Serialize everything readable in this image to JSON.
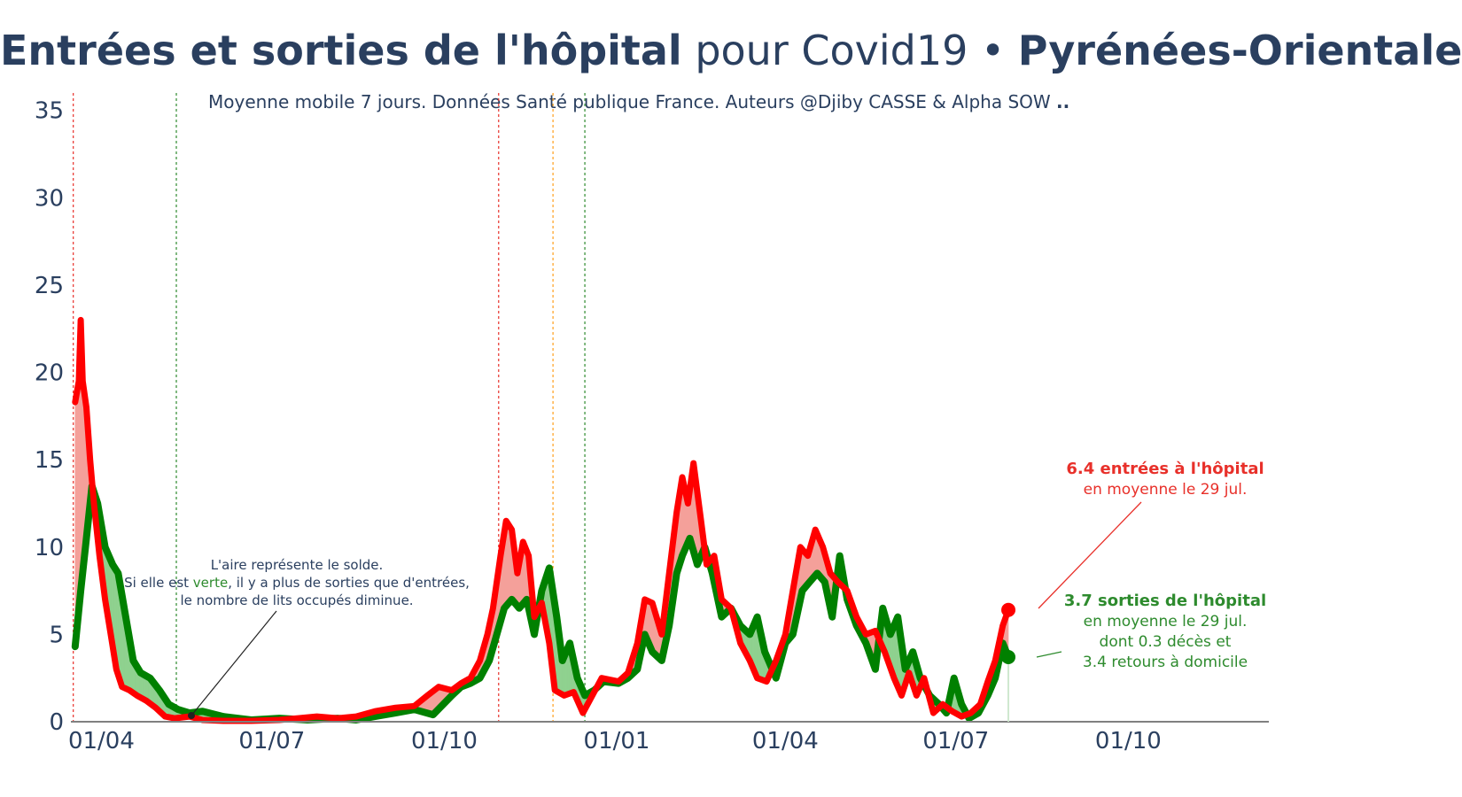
{
  "title": {
    "part1": "Entrées et sorties de l'hôpital",
    "part2": "pour Covid19 •",
    "part3": "Pyrénées-Orientales"
  },
  "subtitle": {
    "text": "Moyenne mobile 7 jours. Données Santé publique France. Auteurs @Djiby CASSE & Alpha SOW",
    "suffix": ".."
  },
  "colors": {
    "entries": "#ff0000",
    "exits": "#008000",
    "area_pos": "#f4a09a",
    "area_neg": "#8fd18f",
    "axis": "#808080",
    "text": "#2a3f5f",
    "entries_label": "#e8302a",
    "exits_label": "#2e8b2e"
  },
  "annotations": {
    "explain_line1": "L'aire représente le solde.",
    "explain_line2a": "Si elle est ",
    "explain_line2b": "verte",
    "explain_line2c": ", il y a plus de sorties que d'entrées,",
    "explain_line3": "le nombre de lits occupés diminue.",
    "entries_bold": "6.4 entrées à l'hôpital",
    "entries_sub": "en moyenne le 29 jul.",
    "exits_bold": "3.7 sorties de l'hôpital",
    "exits_sub1": "en moyenne le 29 jul.",
    "exits_sub2": "dont 0.3 décès et",
    "exits_sub3": "3.4 retours à domicile"
  },
  "chart_data": {
    "type": "line",
    "x_unit": "date",
    "x_range": [
      "2020-03-11",
      "2021-12-15"
    ],
    "ylim": [
      0,
      36
    ],
    "y_ticks": [
      0,
      5,
      10,
      15,
      20,
      25,
      30,
      35
    ],
    "x_ticks": [
      {
        "date": "2020-04-01",
        "label": "01/04"
      },
      {
        "date": "2020-07-01",
        "label": "01/07"
      },
      {
        "date": "2020-10-01",
        "label": "01/10"
      },
      {
        "date": "2021-01-01",
        "label": "01/01"
      },
      {
        "date": "2021-04-01",
        "label": "01/04"
      },
      {
        "date": "2021-07-01",
        "label": "01/07"
      },
      {
        "date": "2021-10-01",
        "label": "01/10"
      }
    ],
    "vlines": [
      {
        "date": "2020-03-17",
        "color": "#e8302a"
      },
      {
        "date": "2020-05-11",
        "color": "#2e8b2e"
      },
      {
        "date": "2020-10-30",
        "color": "#e8302a"
      },
      {
        "date": "2020-11-28",
        "color": "#ff9f1c"
      },
      {
        "date": "2020-12-15",
        "color": "#2e8b2e"
      }
    ],
    "series": [
      {
        "name": "entrées",
        "points": [
          [
            "2020-03-18",
            18.3
          ],
          [
            "2020-03-20",
            19.5
          ],
          [
            "2020-03-21",
            23.0
          ],
          [
            "2020-03-22",
            19.5
          ],
          [
            "2020-03-24",
            18.0
          ],
          [
            "2020-03-26",
            15.0
          ],
          [
            "2020-03-28",
            12.5
          ],
          [
            "2020-03-31",
            9.5
          ],
          [
            "2020-04-03",
            7.0
          ],
          [
            "2020-04-06",
            5.0
          ],
          [
            "2020-04-09",
            3.0
          ],
          [
            "2020-04-12",
            2.0
          ],
          [
            "2020-04-16",
            1.8
          ],
          [
            "2020-04-20",
            1.5
          ],
          [
            "2020-04-25",
            1.2
          ],
          [
            "2020-04-30",
            0.8
          ],
          [
            "2020-05-05",
            0.3
          ],
          [
            "2020-05-10",
            0.2
          ],
          [
            "2020-05-18",
            0.3
          ],
          [
            "2020-05-25",
            0.1
          ],
          [
            "2020-06-05",
            0.05
          ],
          [
            "2020-06-20",
            0.05
          ],
          [
            "2020-07-05",
            0.1
          ],
          [
            "2020-07-15",
            0.2
          ],
          [
            "2020-07-25",
            0.3
          ],
          [
            "2020-08-05",
            0.2
          ],
          [
            "2020-08-15",
            0.3
          ],
          [
            "2020-08-25",
            0.6
          ],
          [
            "2020-09-05",
            0.8
          ],
          [
            "2020-09-15",
            0.9
          ],
          [
            "2020-09-22",
            1.5
          ],
          [
            "2020-09-28",
            2.0
          ],
          [
            "2020-10-05",
            1.8
          ],
          [
            "2020-10-10",
            2.2
          ],
          [
            "2020-10-15",
            2.5
          ],
          [
            "2020-10-20",
            3.5
          ],
          [
            "2020-10-24",
            5.0
          ],
          [
            "2020-10-27",
            6.5
          ],
          [
            "2020-10-31",
            9.5
          ],
          [
            "2020-11-03",
            11.5
          ],
          [
            "2020-11-06",
            11.0
          ],
          [
            "2020-11-09",
            8.5
          ],
          [
            "2020-11-12",
            10.3
          ],
          [
            "2020-11-15",
            9.5
          ],
          [
            "2020-11-18",
            6.0
          ],
          [
            "2020-11-22",
            6.8
          ],
          [
            "2020-11-26",
            4.5
          ],
          [
            "2020-11-29",
            1.8
          ],
          [
            "2020-12-04",
            1.5
          ],
          [
            "2020-12-09",
            1.7
          ],
          [
            "2020-12-14",
            0.5
          ],
          [
            "2020-12-19",
            1.5
          ],
          [
            "2020-12-24",
            2.5
          ],
          [
            "2021-01-02",
            2.3
          ],
          [
            "2021-01-07",
            2.8
          ],
          [
            "2021-01-12",
            4.5
          ],
          [
            "2021-01-16",
            7.0
          ],
          [
            "2021-01-20",
            6.8
          ],
          [
            "2021-01-25",
            5.0
          ],
          [
            "2021-01-29",
            8.5
          ],
          [
            "2021-02-02",
            12.0
          ],
          [
            "2021-02-05",
            14.0
          ],
          [
            "2021-02-08",
            12.5
          ],
          [
            "2021-02-11",
            14.8
          ],
          [
            "2021-02-15",
            11.5
          ],
          [
            "2021-02-18",
            9.0
          ],
          [
            "2021-02-22",
            9.5
          ],
          [
            "2021-02-26",
            7.0
          ],
          [
            "2021-03-03",
            6.5
          ],
          [
            "2021-03-08",
            4.5
          ],
          [
            "2021-03-13",
            3.5
          ],
          [
            "2021-03-17",
            2.5
          ],
          [
            "2021-03-22",
            2.3
          ],
          [
            "2021-03-27",
            3.5
          ],
          [
            "2021-04-01",
            5.0
          ],
          [
            "2021-04-05",
            7.5
          ],
          [
            "2021-04-09",
            10.0
          ],
          [
            "2021-04-13",
            9.5
          ],
          [
            "2021-04-17",
            11.0
          ],
          [
            "2021-04-21",
            10.0
          ],
          [
            "2021-04-25",
            8.5
          ],
          [
            "2021-04-29",
            8.0
          ],
          [
            "2021-05-04",
            7.5
          ],
          [
            "2021-05-09",
            6.0
          ],
          [
            "2021-05-14",
            5.0
          ],
          [
            "2021-05-19",
            5.2
          ],
          [
            "2021-05-24",
            4.0
          ],
          [
            "2021-05-29",
            2.5
          ],
          [
            "2021-06-02",
            1.5
          ],
          [
            "2021-06-06",
            2.8
          ],
          [
            "2021-06-10",
            1.5
          ],
          [
            "2021-06-14",
            2.5
          ],
          [
            "2021-06-19",
            0.5
          ],
          [
            "2021-06-24",
            1.0
          ],
          [
            "2021-06-29",
            0.6
          ],
          [
            "2021-07-04",
            0.3
          ],
          [
            "2021-07-09",
            0.5
          ],
          [
            "2021-07-14",
            1.0
          ],
          [
            "2021-07-18",
            2.3
          ],
          [
            "2021-07-22",
            3.5
          ],
          [
            "2021-07-26",
            5.5
          ],
          [
            "2021-07-29",
            6.4
          ]
        ]
      },
      {
        "name": "sorties",
        "points": [
          [
            "2020-03-18",
            4.3
          ],
          [
            "2020-03-21",
            7.5
          ],
          [
            "2020-03-24",
            10.5
          ],
          [
            "2020-03-27",
            13.5
          ],
          [
            "2020-03-30",
            12.5
          ],
          [
            "2020-04-03",
            10.0
          ],
          [
            "2020-04-07",
            9.0
          ],
          [
            "2020-04-10",
            8.5
          ],
          [
            "2020-04-14",
            6.0
          ],
          [
            "2020-04-18",
            3.5
          ],
          [
            "2020-04-22",
            2.8
          ],
          [
            "2020-04-27",
            2.5
          ],
          [
            "2020-05-02",
            1.8
          ],
          [
            "2020-05-07",
            1.0
          ],
          [
            "2020-05-12",
            0.7
          ],
          [
            "2020-05-18",
            0.5
          ],
          [
            "2020-05-25",
            0.6
          ],
          [
            "2020-06-05",
            0.3
          ],
          [
            "2020-06-20",
            0.1
          ],
          [
            "2020-07-05",
            0.2
          ],
          [
            "2020-07-20",
            0.1
          ],
          [
            "2020-08-05",
            0.2
          ],
          [
            "2020-08-15",
            0.1
          ],
          [
            "2020-08-25",
            0.3
          ],
          [
            "2020-09-05",
            0.5
          ],
          [
            "2020-09-15",
            0.7
          ],
          [
            "2020-09-25",
            0.4
          ],
          [
            "2020-10-05",
            1.5
          ],
          [
            "2020-10-10",
            2.0
          ],
          [
            "2020-10-15",
            2.2
          ],
          [
            "2020-10-20",
            2.5
          ],
          [
            "2020-10-25",
            3.5
          ],
          [
            "2020-10-29",
            5.0
          ],
          [
            "2020-11-02",
            6.5
          ],
          [
            "2020-11-06",
            7.0
          ],
          [
            "2020-11-10",
            6.5
          ],
          [
            "2020-11-14",
            7.0
          ],
          [
            "2020-11-18",
            5.0
          ],
          [
            "2020-11-22",
            7.5
          ],
          [
            "2020-11-26",
            8.8
          ],
          [
            "2020-11-30",
            6.0
          ],
          [
            "2020-12-03",
            3.5
          ],
          [
            "2020-12-07",
            4.5
          ],
          [
            "2020-12-11",
            2.5
          ],
          [
            "2020-12-15",
            1.5
          ],
          [
            "2020-12-20",
            1.8
          ],
          [
            "2020-12-25",
            2.3
          ],
          [
            "2021-01-02",
            2.2
          ],
          [
            "2021-01-07",
            2.5
          ],
          [
            "2021-01-12",
            3.0
          ],
          [
            "2021-01-16",
            5.0
          ],
          [
            "2021-01-20",
            4.0
          ],
          [
            "2021-01-25",
            3.5
          ],
          [
            "2021-01-29",
            5.5
          ],
          [
            "2021-02-02",
            8.5
          ],
          [
            "2021-02-05",
            9.5
          ],
          [
            "2021-02-09",
            10.5
          ],
          [
            "2021-02-13",
            9.0
          ],
          [
            "2021-02-17",
            10.0
          ],
          [
            "2021-02-21",
            8.5
          ],
          [
            "2021-02-26",
            6.0
          ],
          [
            "2021-03-03",
            6.5
          ],
          [
            "2021-03-08",
            5.5
          ],
          [
            "2021-03-13",
            5.0
          ],
          [
            "2021-03-17",
            6.0
          ],
          [
            "2021-03-21",
            4.0
          ],
          [
            "2021-03-27",
            2.5
          ],
          [
            "2021-04-01",
            4.5
          ],
          [
            "2021-04-05",
            5.0
          ],
          [
            "2021-04-10",
            7.5
          ],
          [
            "2021-04-14",
            8.0
          ],
          [
            "2021-04-18",
            8.5
          ],
          [
            "2021-04-22",
            8.0
          ],
          [
            "2021-04-26",
            6.0
          ],
          [
            "2021-04-30",
            9.5
          ],
          [
            "2021-05-04",
            7.0
          ],
          [
            "2021-05-09",
            5.5
          ],
          [
            "2021-05-14",
            4.5
          ],
          [
            "2021-05-19",
            3.0
          ],
          [
            "2021-05-23",
            6.5
          ],
          [
            "2021-05-27",
            5.0
          ],
          [
            "2021-05-31",
            6.0
          ],
          [
            "2021-06-04",
            3.0
          ],
          [
            "2021-06-08",
            4.0
          ],
          [
            "2021-06-12",
            2.5
          ],
          [
            "2021-06-17",
            1.5
          ],
          [
            "2021-06-22",
            1.0
          ],
          [
            "2021-06-26",
            0.5
          ],
          [
            "2021-06-30",
            2.5
          ],
          [
            "2021-07-04",
            1.0
          ],
          [
            "2021-07-08",
            0.2
          ],
          [
            "2021-07-13",
            0.5
          ],
          [
            "2021-07-18",
            1.5
          ],
          [
            "2021-07-22",
            2.5
          ],
          [
            "2021-07-26",
            4.5
          ],
          [
            "2021-07-29",
            3.7
          ]
        ]
      }
    ]
  }
}
